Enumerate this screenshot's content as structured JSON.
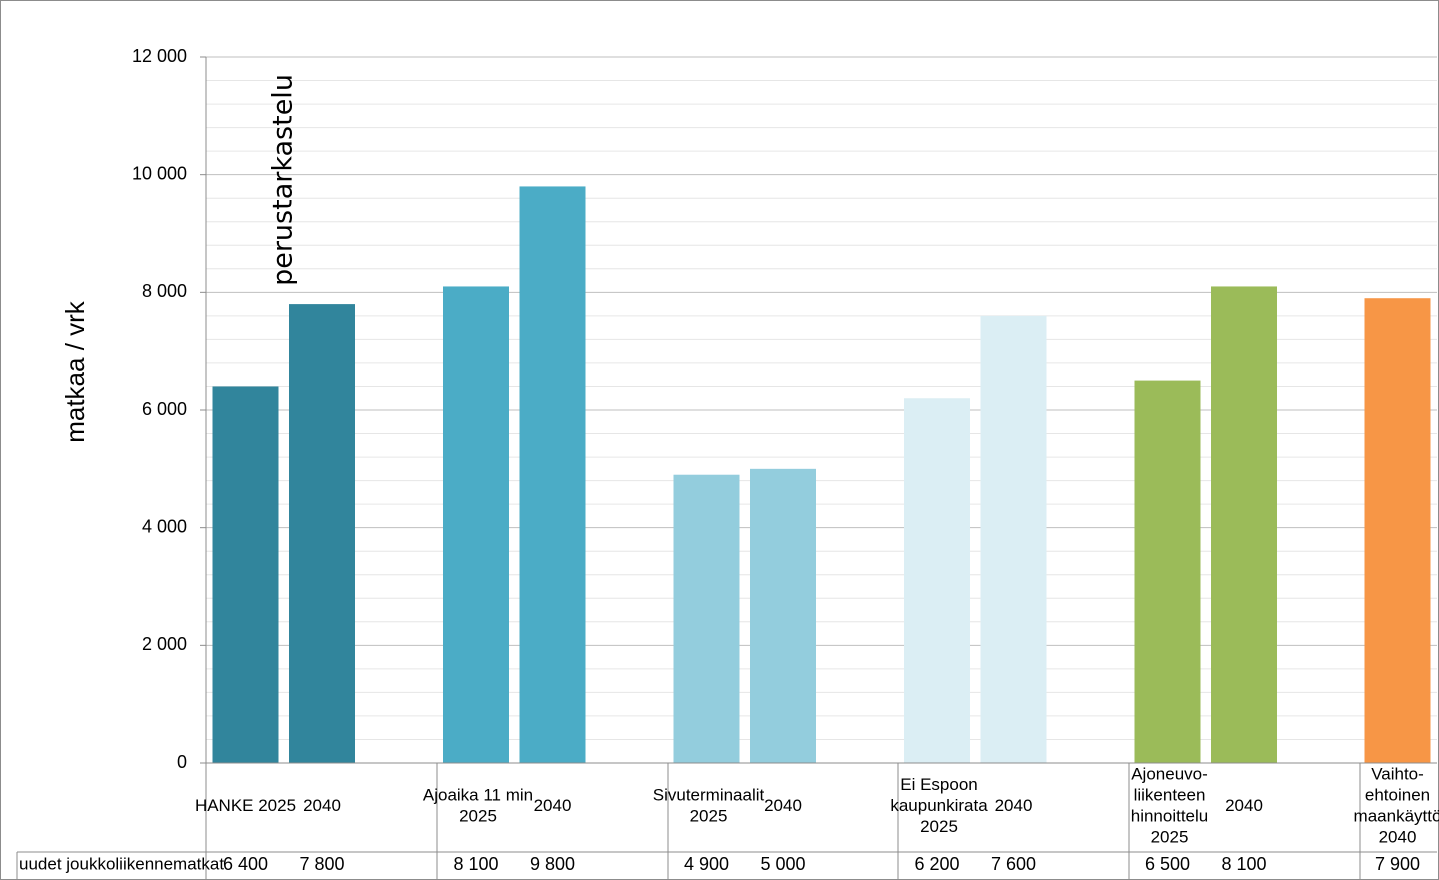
{
  "chart_data": {
    "type": "bar",
    "ylabel": "matkaa / vrk",
    "ylim": [
      0,
      12000
    ],
    "y_ticks": [
      "0",
      "2 000",
      "4 000",
      "6 000",
      "8 000",
      "10 000",
      "12 000"
    ],
    "y_tick_values": [
      0,
      2000,
      4000,
      6000,
      8000,
      10000,
      12000
    ],
    "grid": true,
    "annotation": "perustarkastelu",
    "table_row_label": "uudet joukkoliikennematkat",
    "categories": [
      {
        "lines": [
          "HANKE 2025"
        ],
        "value": 6400,
        "value_label": "6 400",
        "color": "#31859c"
      },
      {
        "lines": [
          "2040"
        ],
        "value": 7800,
        "value_label": "7 800",
        "color": "#31859c"
      },
      {
        "lines": [
          "Ajoaika 11 min",
          "2025"
        ],
        "value": 8100,
        "value_label": "8 100",
        "color": "#4bacc6"
      },
      {
        "lines": [
          "2040"
        ],
        "value": 9800,
        "value_label": "9 800",
        "color": "#4bacc6"
      },
      {
        "lines": [
          "Sivuterminaalit",
          "2025"
        ],
        "value": 4900,
        "value_label": "4 900",
        "color": "#93cddd"
      },
      {
        "lines": [
          "2040"
        ],
        "value": 5000,
        "value_label": "5 000",
        "color": "#93cddd"
      },
      {
        "lines": [
          "Ei Espoon",
          "kaupunkirata",
          "2025"
        ],
        "value": 6200,
        "value_label": "6 200",
        "color": "#dbeef4"
      },
      {
        "lines": [
          "2040"
        ],
        "value": 7600,
        "value_label": "7 600",
        "color": "#dbeef4"
      },
      {
        "lines": [
          "Ajoneuvo-",
          "liikenteen",
          "hinnoittelu",
          "2025"
        ],
        "value": 6500,
        "value_label": "6 500",
        "color": "#9bbb59"
      },
      {
        "lines": [
          "2040"
        ],
        "value": 8100,
        "value_label": "8 100",
        "color": "#9bbb59"
      },
      {
        "lines": [
          "Vaihto-",
          "ehtoinen",
          "maankäyttö",
          "2040"
        ],
        "value": 7900,
        "value_label": "7 900",
        "color": "#f79646"
      }
    ]
  }
}
